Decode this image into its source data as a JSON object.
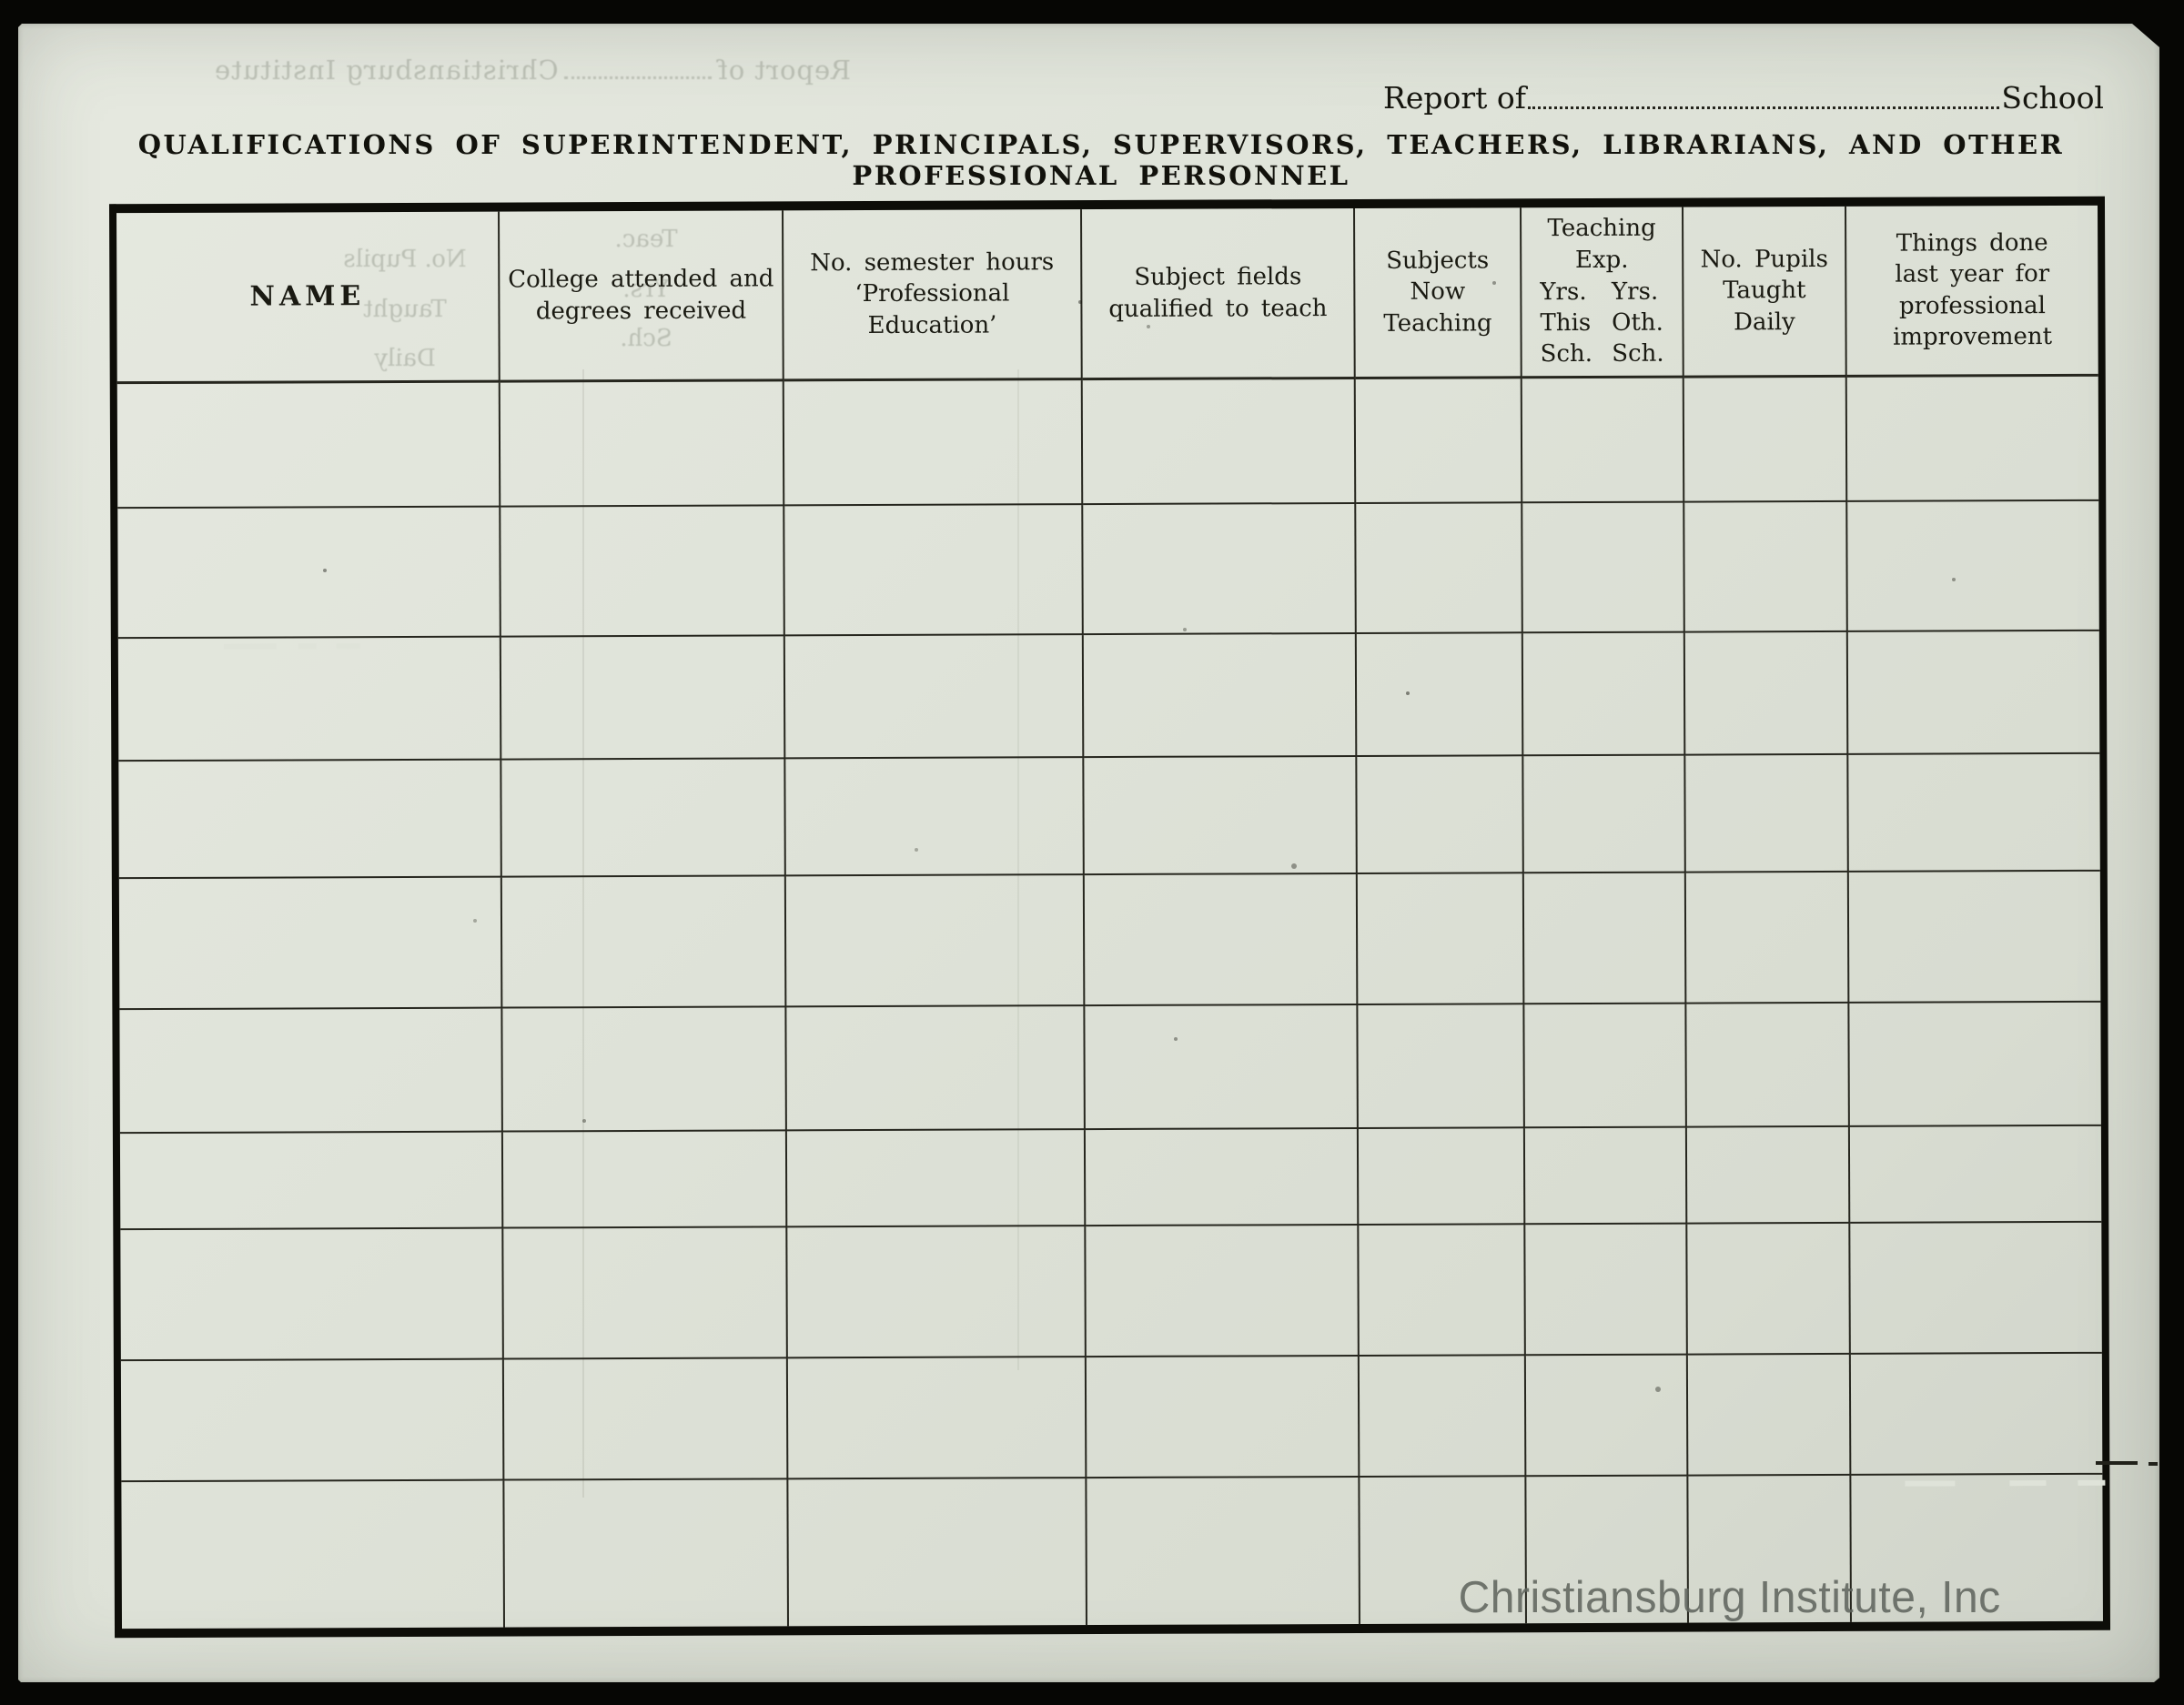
{
  "header": {
    "report_label": "Report of",
    "school_label": "School",
    "title": "QUALIFICATIONS OF SUPERINTENDENT, PRINCIPALS, SUPERVISORS, TEACHERS, LIBRARIANS, AND OTHER PROFESSIONAL PERSONNEL"
  },
  "form": {
    "columns": [
      {
        "id": "name",
        "lines": [
          "NAME"
        ]
      },
      {
        "id": "college",
        "lines": [
          "College attended and",
          "degrees received"
        ]
      },
      {
        "id": "semester-hours",
        "lines": [
          "No. semester hours",
          "‘Professional Education’"
        ]
      },
      {
        "id": "subject-fields",
        "lines": [
          "Subject fields",
          "qualified to teach"
        ]
      },
      {
        "id": "subjects-now-teaching",
        "lines": [
          "Subjects",
          "Now",
          "Teaching"
        ]
      },
      {
        "id": "teaching-exp",
        "title_lines": [
          "Teaching",
          "Exp."
        ],
        "sub_left": [
          "Yrs.",
          "This",
          "Sch."
        ],
        "sub_right": [
          "Yrs.",
          "Oth.",
          "Sch."
        ]
      },
      {
        "id": "pupils",
        "lines": [
          "No. Pupils",
          "Taught",
          "Daily"
        ]
      },
      {
        "id": "things-done",
        "lines": [
          "Things done",
          "last year for",
          "professional",
          "improvement"
        ]
      }
    ],
    "blank_row_count": 10
  },
  "watermark": {
    "text": "Christiansburg Institute, Inc",
    "color": "#61665f"
  },
  "bleed_through": {
    "top": {
      "report_label": "Report of",
      "institute": "Christiansburg Institute"
    },
    "col1_lines": [
      "No. Pupils",
      "Taught",
      "Daily"
    ],
    "col2_lines": [
      "Teac.",
      "Yrs.",
      "Sch."
    ]
  },
  "colors": {
    "paper": "#dfe3d9",
    "line": "#26261e",
    "ink": "#15150e",
    "frame": "#060604"
  }
}
